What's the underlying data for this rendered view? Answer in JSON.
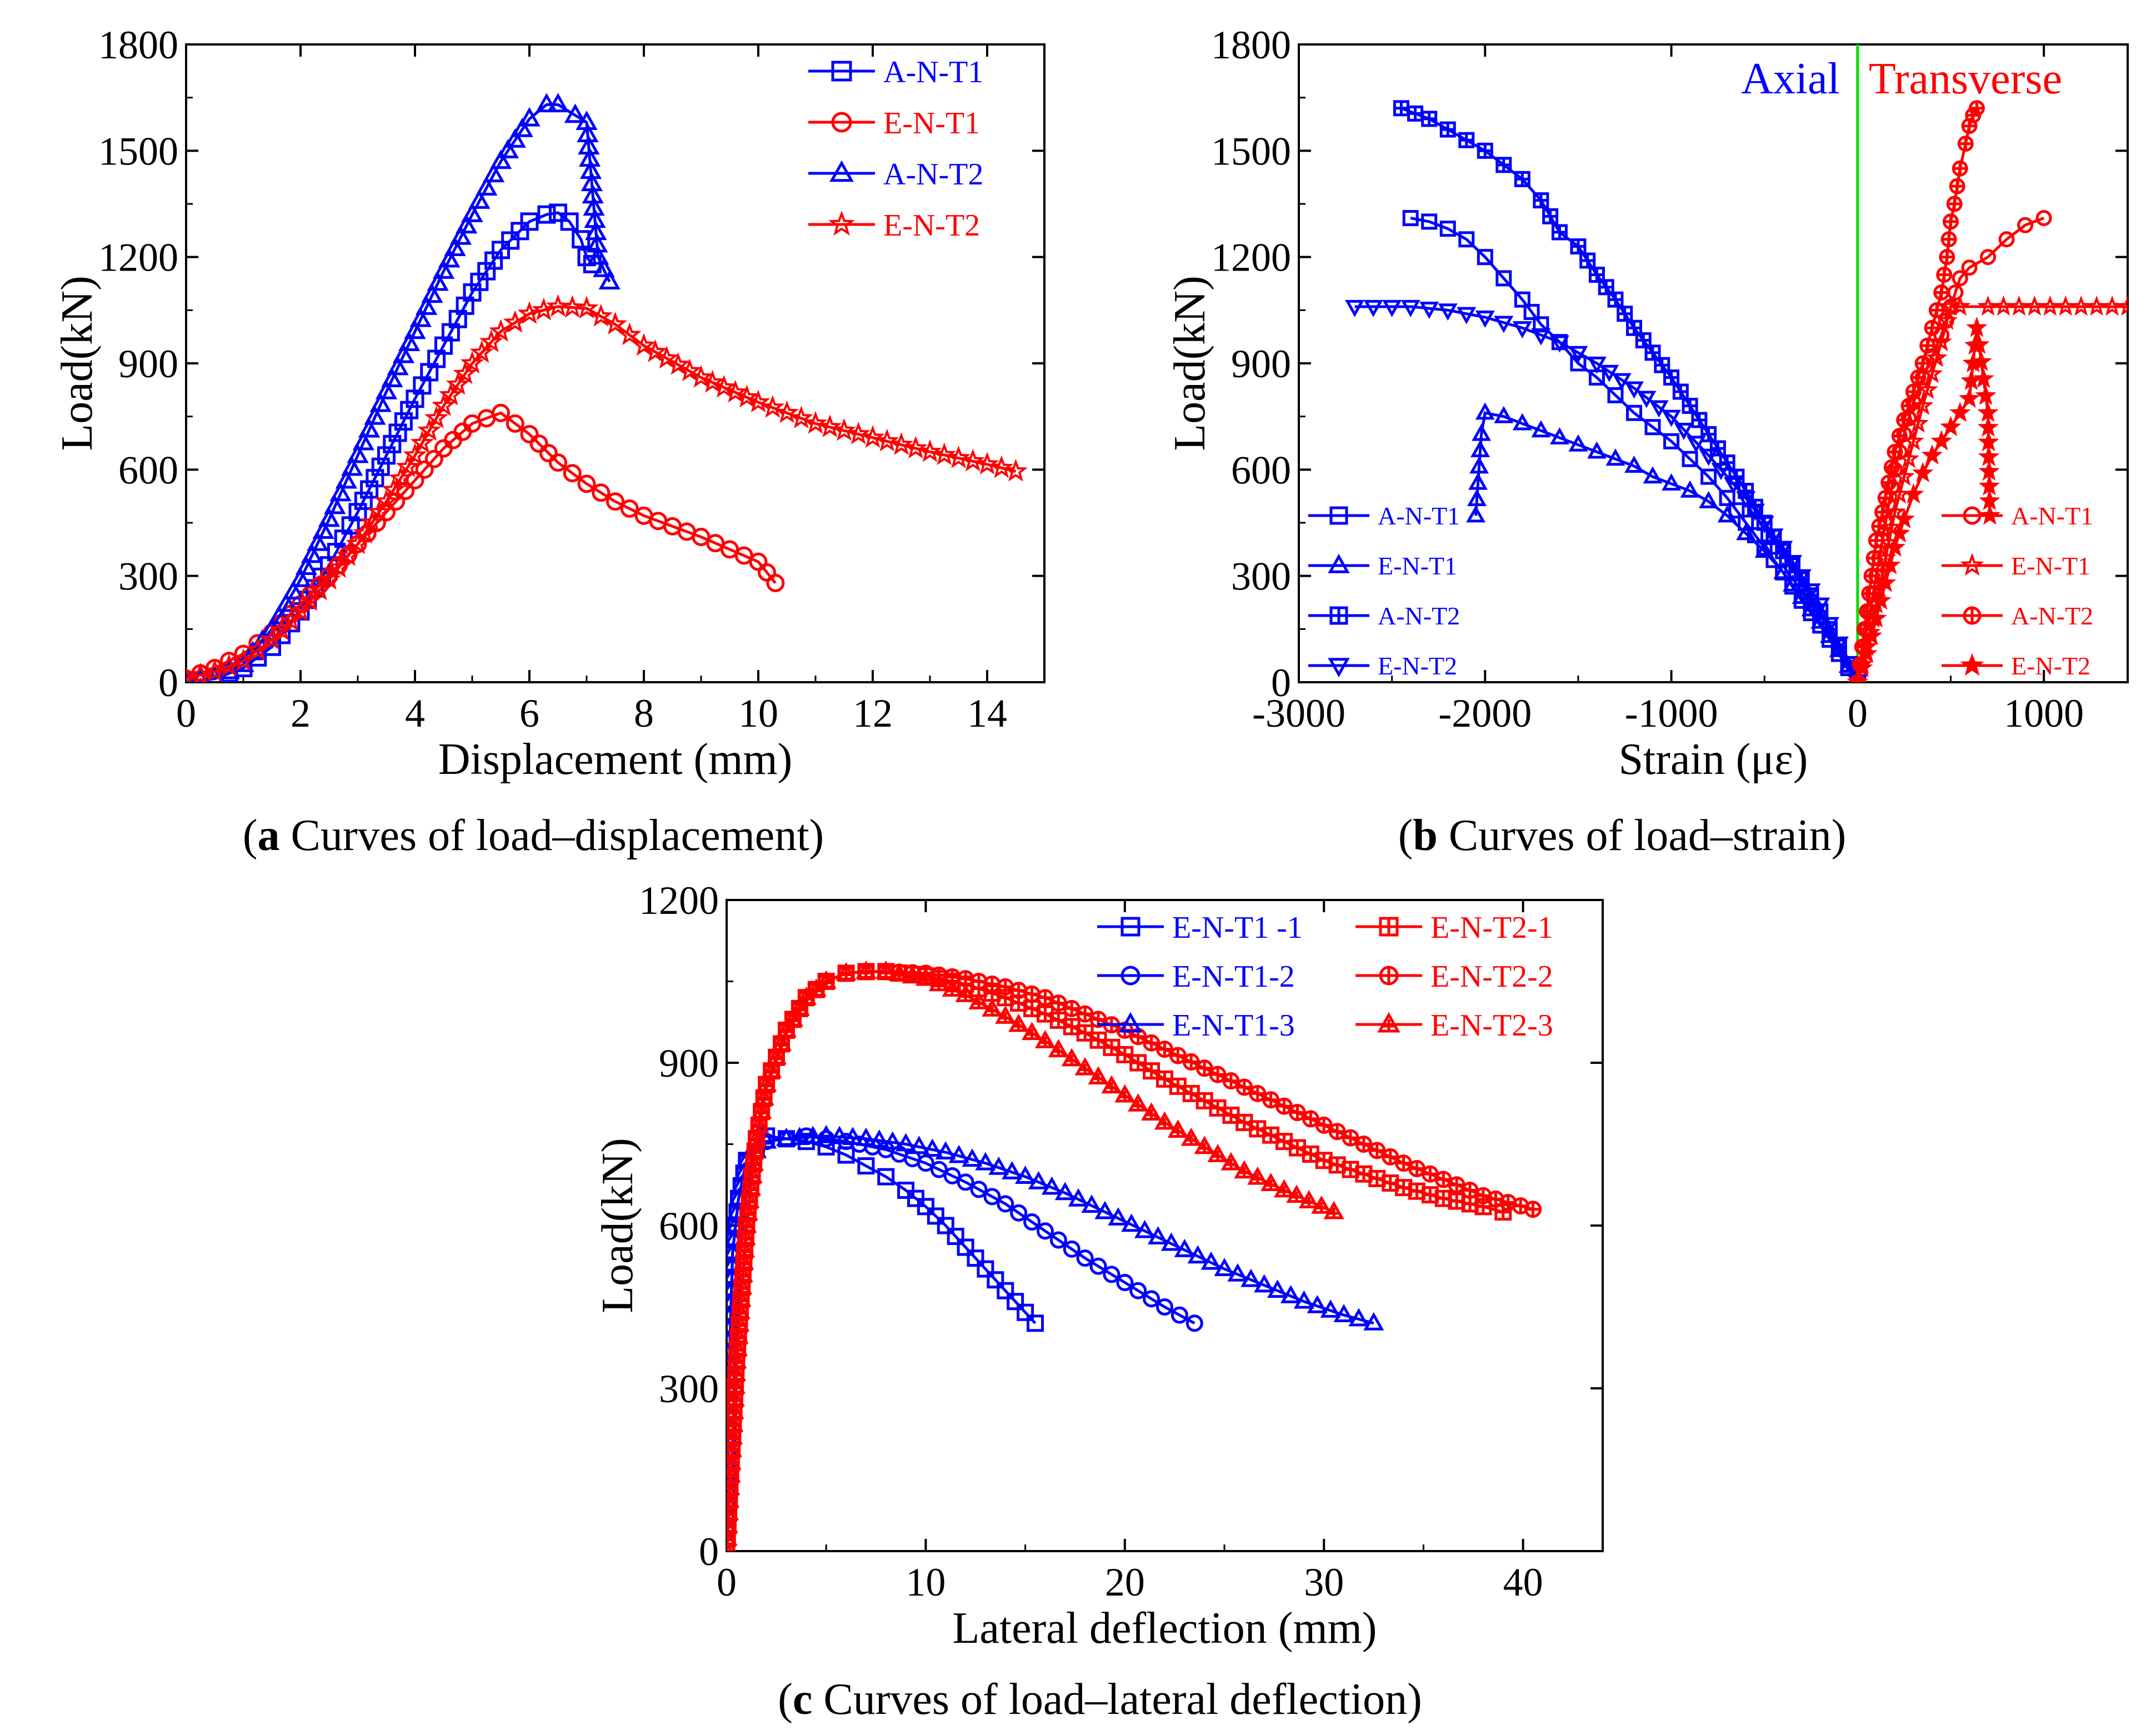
{
  "colors": {
    "blue": "#0000ff",
    "red": "#ff0000",
    "green": "#00dd00"
  },
  "chart_data": [
    {
      "id": "a",
      "type": "line",
      "caption": {
        "letter": "a",
        "text": " Curves of load–displacement"
      },
      "xlabel": "Displacement (mm)",
      "ylabel": "Load(kN)",
      "xlim": [
        0,
        15
      ],
      "ylim": [
        0,
        1800
      ],
      "xticks": [
        0,
        2,
        4,
        6,
        8,
        10,
        12,
        14
      ],
      "yticks": [
        0,
        300,
        600,
        900,
        1200,
        1500,
        1800
      ],
      "series": [
        {
          "name": "A-N-T1",
          "color": "blue",
          "marker": "square",
          "x": [
            0,
            0.5,
            1,
            1.5,
            2,
            2.5,
            3,
            3.5,
            4,
            4.5,
            5,
            5.5,
            6,
            6.3,
            6.5,
            6.7,
            6.9,
            7.0,
            7.1
          ],
          "y": [
            0,
            10,
            40,
            100,
            200,
            330,
            480,
            640,
            800,
            950,
            1100,
            1220,
            1300,
            1320,
            1325,
            1300,
            1250,
            1200,
            1180
          ]
        },
        {
          "name": "E-N-T1",
          "color": "red",
          "marker": "circle",
          "x": [
            0,
            0.5,
            1,
            1.5,
            2,
            2.5,
            3,
            3.5,
            4,
            4.5,
            5,
            5.5,
            6,
            6.5,
            7,
            7.5,
            8,
            8.5,
            9,
            9.5,
            10,
            10.3
          ],
          "y": [
            10,
            40,
            80,
            140,
            220,
            300,
            390,
            480,
            570,
            660,
            730,
            760,
            700,
            620,
            560,
            510,
            470,
            440,
            410,
            375,
            340,
            280
          ]
        },
        {
          "name": "A-N-T2",
          "color": "blue",
          "marker": "triangle",
          "x": [
            0,
            0.5,
            1,
            1.5,
            2,
            2.5,
            3,
            3.5,
            4,
            4.5,
            5,
            5.5,
            6,
            6.3,
            6.5,
            6.8,
            7.0,
            7.2,
            7.4
          ],
          "y": [
            0,
            10,
            50,
            150,
            290,
            460,
            640,
            820,
            990,
            1160,
            1320,
            1470,
            1590,
            1630,
            1630,
            1600,
            1580,
            1200,
            1130
          ]
        },
        {
          "name": "E-N-T2",
          "color": "red",
          "marker": "star",
          "x": [
            0,
            0.5,
            1,
            1.5,
            2,
            2.5,
            3,
            3.5,
            4,
            4.5,
            5,
            5.5,
            6,
            6.5,
            7,
            7.5,
            8,
            9,
            10,
            11,
            12,
            13,
            14,
            14.5
          ],
          "y": [
            10,
            30,
            60,
            120,
            200,
            290,
            390,
            510,
            640,
            780,
            900,
            990,
            1040,
            1060,
            1055,
            1010,
            950,
            860,
            790,
            730,
            690,
            650,
            615,
            595
          ]
        }
      ]
    },
    {
      "id": "b",
      "type": "line",
      "caption": {
        "letter": "b",
        "text": " Curves of load–strain"
      },
      "xlabel": "Strain (με)",
      "ylabel": "Load(kN)",
      "xlim": [
        -3000,
        1450
      ],
      "ylim": [
        0,
        1800
      ],
      "xticks": [
        -3000,
        -2000,
        -1000,
        0,
        1000
      ],
      "yticks": [
        0,
        300,
        600,
        900,
        1200,
        1500,
        1800
      ],
      "annotations": [
        "Axial",
        "Transverse"
      ],
      "series": [
        {
          "name": "A-N-T1",
          "group": "axial",
          "color": "blue",
          "marker": "square",
          "x": [
            -2400,
            -2300,
            -2200,
            -2100,
            -2000,
            -1900,
            -1800,
            -1700,
            -1600,
            -1500,
            -1400,
            -1300,
            -1200,
            -1100,
            -1000,
            -900,
            -800,
            -700,
            -600,
            -500,
            -400,
            -300,
            -200,
            -100,
            0
          ],
          "y": [
            1310,
            1300,
            1280,
            1250,
            1200,
            1140,
            1080,
            1010,
            960,
            900,
            860,
            810,
            760,
            720,
            680,
            630,
            580,
            520,
            450,
            380,
            310,
            230,
            160,
            80,
            0
          ]
        },
        {
          "name": "E-N-T1",
          "group": "axial",
          "color": "blue",
          "marker": "triangle",
          "x": [
            -2050,
            -2020,
            -2000,
            -1900,
            -1800,
            -1700,
            -1600,
            -1500,
            -1400,
            -1300,
            -1200,
            -1100,
            -1000,
            -900,
            -800,
            -700,
            -600,
            -500,
            -400,
            -300,
            -200,
            -100,
            0
          ],
          "y": [
            470,
            700,
            760,
            750,
            730,
            710,
            690,
            670,
            650,
            630,
            610,
            580,
            560,
            540,
            510,
            470,
            420,
            370,
            310,
            240,
            170,
            90,
            0
          ]
        },
        {
          "name": "A-N-T2",
          "group": "axial",
          "color": "blue",
          "marker": "squareplus",
          "x": [
            -2450,
            -2300,
            -2200,
            -2100,
            -2000,
            -1900,
            -1800,
            -1700,
            -1600,
            -1500,
            -1400,
            -1300,
            -1200,
            -1100,
            -1000,
            -900,
            -800,
            -700,
            -600,
            -500,
            -400,
            -300,
            -200,
            -100,
            0
          ],
          "y": [
            1620,
            1590,
            1560,
            1530,
            1500,
            1460,
            1420,
            1360,
            1270,
            1230,
            1150,
            1080,
            1000,
            930,
            860,
            780,
            700,
            620,
            540,
            450,
            370,
            290,
            200,
            100,
            0
          ]
        },
        {
          "name": "E-N-T2",
          "group": "axial",
          "color": "blue",
          "marker": "tridown",
          "x": [
            -2700,
            -2400,
            -2200,
            -2000,
            -1800,
            -1600,
            -1400,
            -1200,
            -1000,
            -800,
            -600,
            -400,
            -200,
            -100,
            0
          ],
          "y": [
            1060,
            1060,
            1050,
            1030,
            1000,
            960,
            900,
            830,
            750,
            640,
            520,
            380,
            220,
            110,
            0
          ]
        },
        {
          "name": "A-N-T1",
          "group": "transverse",
          "color": "red",
          "marker": "circle",
          "x": [
            0,
            50,
            100,
            150,
            200,
            250,
            300,
            350,
            400,
            450,
            500,
            550,
            600,
            700,
            800,
            900,
            1000
          ],
          "y": [
            0,
            150,
            300,
            450,
            600,
            700,
            790,
            860,
            920,
            980,
            1060,
            1140,
            1170,
            1200,
            1250,
            1290,
            1310
          ]
        },
        {
          "name": "E-N-T1",
          "group": "transverse",
          "color": "red",
          "marker": "star",
          "x": [
            0,
            50,
            100,
            150,
            200,
            250,
            300,
            350,
            400,
            450,
            480,
            500,
            550,
            700,
            1450
          ],
          "y": [
            0,
            100,
            220,
            350,
            480,
            580,
            680,
            780,
            870,
            960,
            1020,
            1060,
            1060,
            1060,
            1060
          ]
        },
        {
          "name": "A-N-T2",
          "group": "transverse",
          "color": "red",
          "marker": "circleplus",
          "x": [
            0,
            50,
            100,
            150,
            200,
            250,
            300,
            350,
            400,
            450,
            480,
            500,
            520,
            550,
            580,
            600,
            620,
            640
          ],
          "y": [
            0,
            200,
            400,
            520,
            650,
            740,
            820,
            900,
            1000,
            1100,
            1200,
            1300,
            1350,
            1450,
            1520,
            1570,
            1600,
            1620
          ]
        },
        {
          "name": "E-N-T2",
          "group": "transverse",
          "color": "red",
          "marker": "starfill",
          "x": [
            0,
            50,
            100,
            150,
            200,
            250,
            300,
            350,
            400,
            450,
            500,
            550,
            600,
            620,
            640,
            700,
            710
          ],
          "y": [
            0,
            80,
            180,
            280,
            380,
            460,
            530,
            590,
            640,
            680,
            720,
            760,
            800,
            900,
            1000,
            760,
            470
          ]
        }
      ]
    },
    {
      "id": "c",
      "type": "line",
      "caption": {
        "letter": "c",
        "text": " Curves of load–lateral deflection"
      },
      "xlabel": "Lateral deflection (mm)",
      "ylabel": "Load(kN)",
      "xlim": [
        0,
        44
      ],
      "ylim": [
        0,
        1200
      ],
      "xticks": [
        0,
        10,
        20,
        30,
        40
      ],
      "yticks": [
        0,
        300,
        600,
        900,
        1200
      ],
      "series": [
        {
          "name": "E-N-T1 -1",
          "color": "blue",
          "marker": "square",
          "x": [
            0,
            0.1,
            0.3,
            0.6,
            1,
            1.5,
            2,
            3,
            4,
            5,
            6,
            7,
            8,
            9,
            10,
            11,
            12,
            13,
            14,
            15,
            15.5
          ],
          "y": [
            0,
            300,
            550,
            650,
            720,
            760,
            765,
            760,
            755,
            745,
            730,
            710,
            690,
            665,
            635,
            600,
            560,
            520,
            480,
            440,
            420
          ]
        },
        {
          "name": "E-N-T1-2",
          "color": "blue",
          "marker": "circle",
          "x": [
            0,
            0.1,
            0.3,
            0.6,
            1,
            2,
            3,
            4,
            5,
            6,
            8,
            10,
            12,
            14,
            16,
            18,
            20,
            22,
            23.5
          ],
          "y": [
            0,
            300,
            550,
            650,
            720,
            755,
            760,
            765,
            760,
            755,
            740,
            715,
            680,
            640,
            590,
            540,
            495,
            450,
            420
          ]
        },
        {
          "name": "E-N-T1-3",
          "color": "blue",
          "marker": "triangle",
          "x": [
            0,
            0.1,
            0.3,
            0.6,
            1,
            2,
            3,
            5,
            7,
            9,
            11,
            13,
            15,
            17,
            19,
            21,
            23,
            25,
            27,
            29,
            31,
            32.5
          ],
          "y": [
            0,
            300,
            550,
            650,
            720,
            755,
            760,
            765,
            760,
            750,
            735,
            715,
            690,
            660,
            625,
            590,
            555,
            520,
            490,
            460,
            435,
            420
          ]
        },
        {
          "name": "E-N-T2-1",
          "color": "red",
          "marker": "squareplus",
          "x": [
            0,
            0.5,
            1,
            1.5,
            2,
            3,
            4,
            5,
            6,
            7,
            8,
            10,
            12,
            14,
            16,
            18,
            20,
            22,
            24,
            26,
            28,
            30,
            32,
            34,
            36,
            38,
            39
          ],
          "y": [
            0,
            350,
            600,
            760,
            860,
            960,
            1020,
            1050,
            1065,
            1068,
            1068,
            1060,
            1045,
            1020,
            990,
            955,
            915,
            870,
            830,
            790,
            755,
            720,
            695,
            670,
            650,
            635,
            625
          ]
        },
        {
          "name": "E-N-T2-2",
          "color": "red",
          "marker": "circleplus",
          "x": [
            0,
            0.5,
            1,
            1.5,
            2,
            3,
            4,
            5,
            6,
            7,
            8,
            10,
            12,
            14,
            16,
            18,
            20,
            22,
            24,
            26,
            28,
            30,
            32,
            34,
            36,
            38,
            40.5
          ],
          "y": [
            0,
            350,
            600,
            760,
            860,
            960,
            1020,
            1050,
            1065,
            1068,
            1068,
            1065,
            1055,
            1040,
            1020,
            990,
            960,
            925,
            890,
            855,
            820,
            785,
            750,
            715,
            685,
            655,
            630
          ]
        },
        {
          "name": "E-N-T2-3",
          "color": "red",
          "marker": "trianglecross",
          "x": [
            0,
            0.5,
            1,
            1.5,
            2,
            3,
            4,
            5,
            6,
            7,
            8,
            10,
            12,
            14,
            16,
            18,
            20,
            22,
            24,
            26,
            28,
            30.5
          ],
          "y": [
            0,
            350,
            600,
            760,
            860,
            960,
            1020,
            1050,
            1065,
            1068,
            1068,
            1055,
            1025,
            985,
            940,
            890,
            840,
            790,
            745,
            700,
            665,
            625
          ]
        }
      ]
    }
  ]
}
